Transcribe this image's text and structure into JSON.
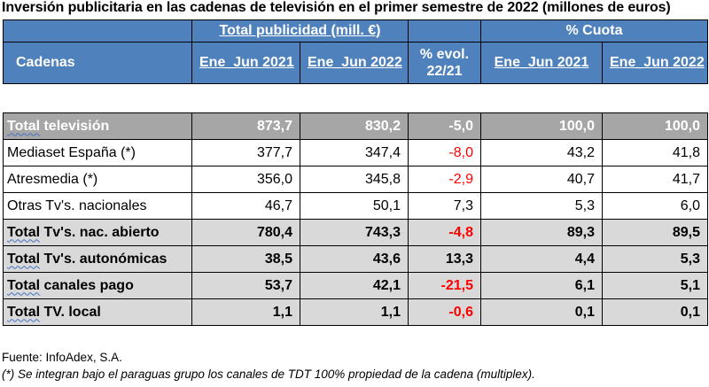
{
  "title": "Inversión publicitaria en las cadenas de televisión en el primer semestre de 2022 (millones de euros)",
  "header": {
    "group1": "Total publicidad (mill. €)",
    "group2": "% Cuota",
    "cadenas": "Cadenas",
    "col1": "Ene_Jun 2021",
    "col2": "Ene_Jun 2022",
    "evol_line1": "% evol.",
    "evol_line2": "22/21",
    "col4": "Ene_Jun 2021",
    "col5": "Ene_Jun 2022"
  },
  "rows": [
    {
      "name": "Total televisión",
      "v2021": "873,7",
      "v2022": "830,2",
      "evol": "-5,0",
      "c2021": "100,0",
      "c2022": "100,0"
    },
    {
      "name": "Mediaset España (*)",
      "v2021": "377,7",
      "v2022": "347,4",
      "evol": "-8,0",
      "c2021": "43,2",
      "c2022": "41,8"
    },
    {
      "name": "Atresmedia (*)",
      "v2021": "356,0",
      "v2022": "345,8",
      "evol": "-2,9",
      "c2021": "40,7",
      "c2022": "41,7"
    },
    {
      "name": "Otras Tv's. nacionales",
      "v2021": "46,7",
      "v2022": "50,1",
      "evol": "7,3",
      "c2021": "5,3",
      "c2022": "6,0"
    },
    {
      "name": "Total Tv's. nac. abierto",
      "v2021": "780,4",
      "v2022": "743,3",
      "evol": "-4,8",
      "c2021": "89,3",
      "c2022": "89,5"
    },
    {
      "name": "Total Tv's. autonómicas",
      "v2021": "38,5",
      "v2022": "43,6",
      "evol": "13,3",
      "c2021": "4,4",
      "c2022": "5,3"
    },
    {
      "name": "Total canales pago",
      "v2021": "53,7",
      "v2022": "42,1",
      "evol": "-21,5",
      "c2021": "6,1",
      "c2022": "5,1"
    },
    {
      "name": "Total TV. local",
      "v2021": "1,1",
      "v2022": "1,1",
      "evol": "-0,6",
      "c2021": "0,1",
      "c2022": "0,1"
    }
  ],
  "footnotes": {
    "source": "Fuente: InfoAdex, S.A.",
    "note": "(*) Se integran bajo el paraguas grupo los canales de TDT 100% propiedad de la cadena (multiplex)."
  },
  "colors": {
    "header_bg": "#4f81bd",
    "total_bg": "#a6a6a6",
    "subtotal_bg": "#d9d9d9",
    "negative": "#ff0000"
  }
}
